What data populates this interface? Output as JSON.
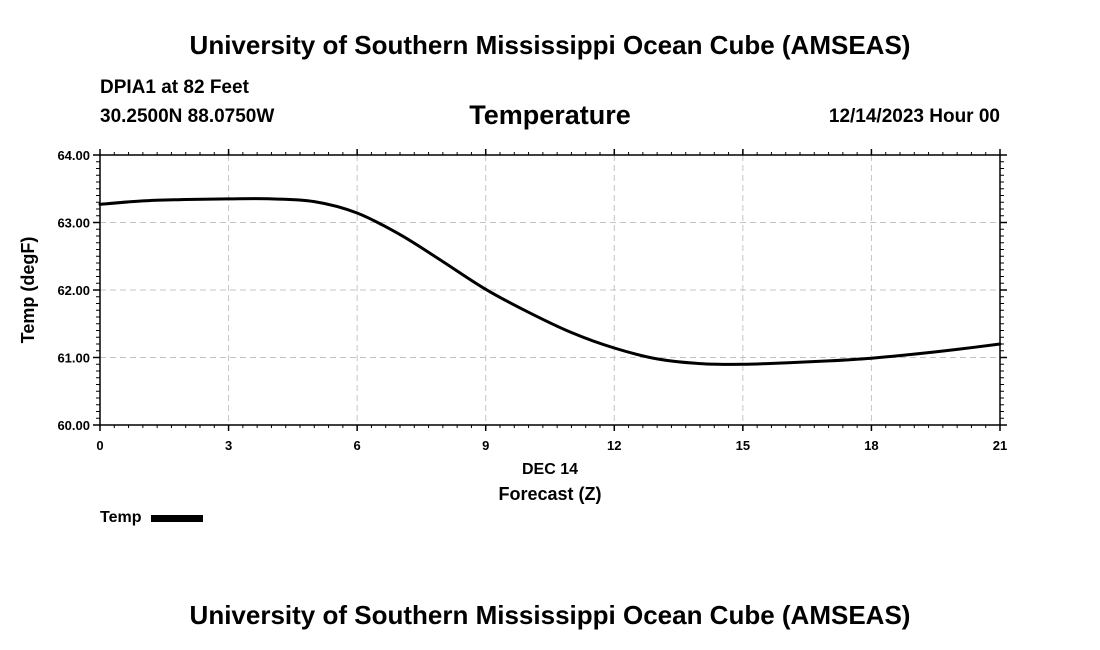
{
  "header": {
    "title": "University of Southern Mississippi Ocean Cube (AMSEAS)",
    "station": "DPIA1 at 82 Feet",
    "coords": "30.2500N  88.0750W",
    "variable": "Temperature",
    "datetime": "12/14/2023 Hour 00"
  },
  "footer": {
    "title": "University of Southern Mississippi Ocean Cube (AMSEAS)"
  },
  "legend": {
    "label": "Temp"
  },
  "chart_data": {
    "type": "line",
    "title": "Temperature",
    "xlabel": "Forecast (Z)",
    "xsublabel": "DEC 14",
    "ylabel": "Temp (degF)",
    "xlim": [
      0,
      21
    ],
    "ylim": [
      60,
      64
    ],
    "xticks": [
      0,
      3,
      6,
      9,
      12,
      15,
      18,
      21
    ],
    "xtick_labels": [
      "0",
      "3",
      "6",
      "9",
      "12",
      "15",
      "18",
      "21"
    ],
    "yticks": [
      60,
      61,
      62,
      63,
      64
    ],
    "ytick_labels": [
      "60.00",
      "61.00",
      "62.00",
      "63.00",
      "64.00"
    ],
    "grid": true,
    "series": [
      {
        "name": "Temp",
        "color": "#000000",
        "x": [
          0,
          1,
          2,
          3,
          4,
          5,
          6,
          7,
          8,
          9,
          10,
          11,
          12,
          13,
          14,
          15,
          16,
          17,
          18,
          19,
          20,
          21
        ],
        "y": [
          63.27,
          63.32,
          63.34,
          63.35,
          63.35,
          63.31,
          63.14,
          62.82,
          62.42,
          62.01,
          61.67,
          61.37,
          61.14,
          60.98,
          60.91,
          60.9,
          60.92,
          60.95,
          60.99,
          61.05,
          61.12,
          61.2
        ]
      }
    ]
  }
}
